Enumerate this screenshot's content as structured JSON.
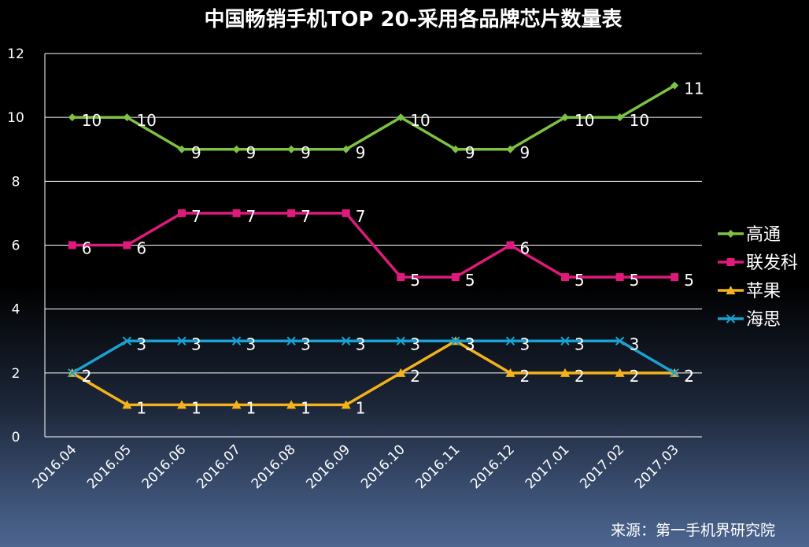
{
  "chart_data": {
    "type": "line",
    "title": "中国畅销手机TOP 20-采用各品牌芯片数量表",
    "categories": [
      "2016.04",
      "2016.05",
      "2016.06",
      "2016.07",
      "2016.08",
      "2016.09",
      "2016.10",
      "2016.11",
      "2016.12",
      "2017.01",
      "2017.02",
      "2017.03"
    ],
    "ylim": [
      0,
      12
    ],
    "yticks": [
      "0",
      "2",
      "4",
      "6",
      "8",
      "10",
      "12"
    ],
    "grid": true,
    "legend_position": "right",
    "series": [
      {
        "name": "高通",
        "color": "#7dc242",
        "marker": "diamond",
        "values": [
          10,
          10,
          9,
          9,
          9,
          9,
          10,
          9,
          9,
          10,
          10,
          11
        ]
      },
      {
        "name": "联发科",
        "color": "#e0197d",
        "marker": "square",
        "values": [
          6,
          6,
          7,
          7,
          7,
          7,
          5,
          5,
          6,
          5,
          5,
          5
        ]
      },
      {
        "name": "苹果",
        "color": "#f5b21a",
        "marker": "triangle",
        "values": [
          2,
          1,
          1,
          1,
          1,
          1,
          2,
          3,
          2,
          2,
          2,
          2
        ]
      },
      {
        "name": "海思",
        "color": "#1ba1d0",
        "marker": "x",
        "values": [
          2,
          3,
          3,
          3,
          3,
          3,
          3,
          3,
          3,
          3,
          3,
          2
        ]
      }
    ],
    "source": "来源：第一手机界研究院"
  }
}
